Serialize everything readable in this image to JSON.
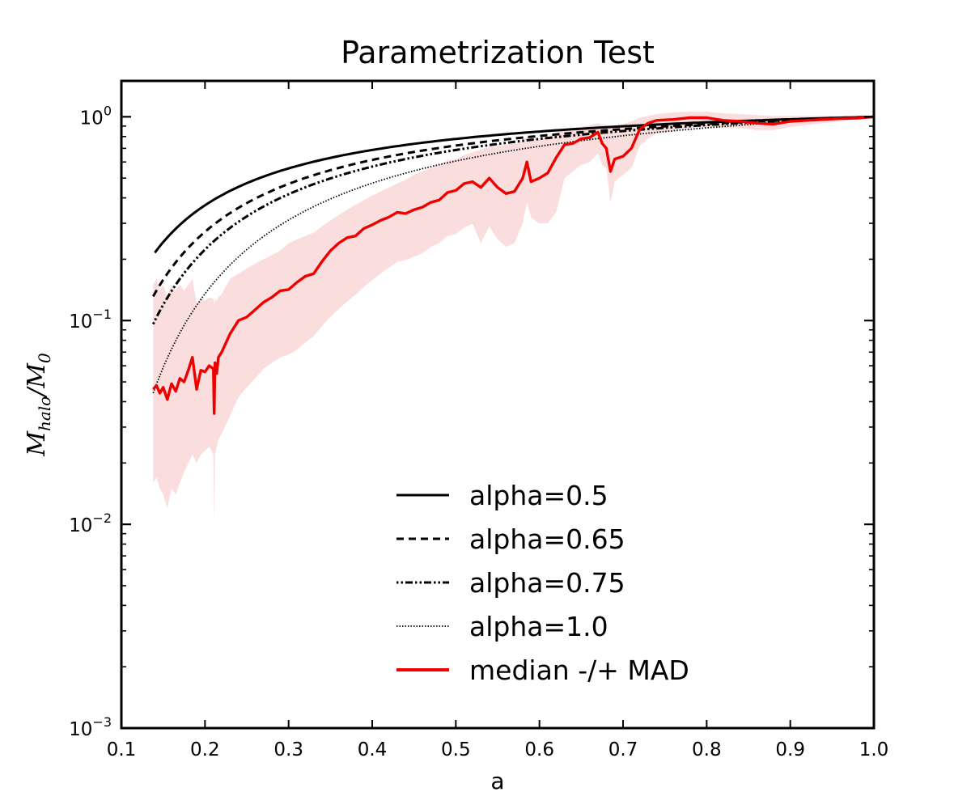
{
  "chart_data": {
    "type": "line",
    "title": "Parametrization Test",
    "xlabel": "a",
    "ylabel_base": "M",
    "ylabel_sub1": "halo",
    "ylabel_mid": "/M",
    "ylabel_sub2": "0",
    "xlim": [
      0.1,
      1.0
    ],
    "ylim": [
      0.001,
      1.5
    ],
    "yscale": "log",
    "grid": false,
    "legend_position": "lower-right",
    "x_ticks": [
      {
        "value": 0.1,
        "label": "0.1"
      },
      {
        "value": 0.2,
        "label": "0.2"
      },
      {
        "value": 0.3,
        "label": "0.3"
      },
      {
        "value": 0.4,
        "label": "0.4"
      },
      {
        "value": 0.5,
        "label": "0.5"
      },
      {
        "value": 0.6,
        "label": "0.6"
      },
      {
        "value": 0.7,
        "label": "0.7"
      },
      {
        "value": 0.8,
        "label": "0.8"
      },
      {
        "value": 0.9,
        "label": "0.9"
      },
      {
        "value": 1.0,
        "label": "1.0"
      }
    ],
    "y_ticks": [
      {
        "value": 0.001,
        "base": "10",
        "exp": "−3"
      },
      {
        "value": 0.01,
        "base": "10",
        "exp": "−2"
      },
      {
        "value": 0.1,
        "base": "10",
        "exp": "−1"
      },
      {
        "value": 1.0,
        "base": "10",
        "exp": "0"
      }
    ],
    "series": [
      {
        "name": "alpha=0.5",
        "color": "#000000",
        "style": "solid",
        "alpha_param": 0.5,
        "x_start": 0.14,
        "x_end": 1.0
      },
      {
        "name": "alpha=0.65",
        "color": "#000000",
        "style": "dashed",
        "alpha_param": 0.65,
        "x_start": 0.138,
        "x_end": 1.0
      },
      {
        "name": "alpha=0.75",
        "color": "#000000",
        "style": "dashdot",
        "alpha_param": 0.75,
        "x_start": 0.138,
        "x_end": 1.0
      },
      {
        "name": "alpha=1.0",
        "color": "#000000",
        "style": "dotted",
        "alpha_param": 1.0,
        "x_start": 0.138,
        "x_end": 1.0
      },
      {
        "name": "median -/+ MAD",
        "color": "#ee0000",
        "style": "solid",
        "band_color": "#f4b4b4",
        "x": [
          0.138,
          0.142,
          0.146,
          0.15,
          0.155,
          0.16,
          0.165,
          0.17,
          0.175,
          0.18,
          0.185,
          0.19,
          0.195,
          0.2,
          0.205,
          0.21,
          0.211,
          0.212,
          0.214,
          0.216,
          0.22,
          0.23,
          0.24,
          0.25,
          0.26,
          0.27,
          0.28,
          0.29,
          0.3,
          0.31,
          0.32,
          0.33,
          0.34,
          0.35,
          0.36,
          0.37,
          0.38,
          0.39,
          0.4,
          0.41,
          0.42,
          0.43,
          0.44,
          0.45,
          0.46,
          0.47,
          0.48,
          0.49,
          0.5,
          0.51,
          0.52,
          0.53,
          0.54,
          0.55,
          0.56,
          0.57,
          0.58,
          0.585,
          0.59,
          0.6,
          0.61,
          0.62,
          0.63,
          0.64,
          0.65,
          0.66,
          0.67,
          0.675,
          0.68,
          0.685,
          0.69,
          0.7,
          0.71,
          0.72,
          0.73,
          0.74,
          0.76,
          0.78,
          0.8,
          0.82,
          0.84,
          0.86,
          0.88,
          0.9,
          0.92,
          0.94,
          0.96,
          0.98,
          1.0
        ],
        "median": [
          0.046,
          0.048,
          0.044,
          0.047,
          0.041,
          0.049,
          0.045,
          0.052,
          0.05,
          0.057,
          0.066,
          0.046,
          0.057,
          0.056,
          0.06,
          0.058,
          0.035,
          0.062,
          0.055,
          0.066,
          0.07,
          0.086,
          0.1,
          0.104,
          0.113,
          0.123,
          0.13,
          0.14,
          0.142,
          0.154,
          0.165,
          0.17,
          0.195,
          0.22,
          0.24,
          0.255,
          0.26,
          0.283,
          0.295,
          0.31,
          0.322,
          0.34,
          0.335,
          0.35,
          0.36,
          0.38,
          0.39,
          0.425,
          0.435,
          0.47,
          0.48,
          0.45,
          0.5,
          0.45,
          0.42,
          0.43,
          0.5,
          0.6,
          0.48,
          0.5,
          0.53,
          0.63,
          0.73,
          0.74,
          0.78,
          0.79,
          0.84,
          0.74,
          0.7,
          0.54,
          0.62,
          0.64,
          0.7,
          0.87,
          0.93,
          0.96,
          0.97,
          0.99,
          0.99,
          0.96,
          0.95,
          0.93,
          0.92,
          0.95,
          0.96,
          0.97,
          0.98,
          0.985,
          1.0
        ],
        "upper": [
          0.15,
          0.16,
          0.14,
          0.15,
          0.13,
          0.15,
          0.14,
          0.15,
          0.14,
          0.15,
          0.16,
          0.12,
          0.13,
          0.125,
          0.13,
          0.128,
          0.12,
          0.128,
          0.125,
          0.13,
          0.135,
          0.16,
          0.17,
          0.18,
          0.19,
          0.2,
          0.21,
          0.22,
          0.24,
          0.25,
          0.26,
          0.27,
          0.29,
          0.31,
          0.33,
          0.35,
          0.37,
          0.39,
          0.41,
          0.43,
          0.45,
          0.47,
          0.49,
          0.52,
          0.54,
          0.56,
          0.58,
          0.61,
          0.62,
          0.65,
          0.67,
          0.69,
          0.71,
          0.72,
          0.73,
          0.74,
          0.76,
          0.8,
          0.77,
          0.78,
          0.8,
          0.83,
          0.86,
          0.88,
          0.89,
          0.91,
          0.93,
          0.92,
          0.91,
          0.88,
          0.9,
          0.92,
          0.95,
          0.99,
          1.01,
          1.03,
          1.05,
          1.06,
          1.06,
          1.04,
          1.03,
          1.02,
          1.01,
          1.01,
          1.01,
          1.01,
          1.01,
          1.0,
          1.0
        ],
        "lower": [
          0.016,
          0.017,
          0.015,
          0.014,
          0.012,
          0.015,
          0.014,
          0.016,
          0.018,
          0.02,
          0.022,
          0.02,
          0.022,
          0.023,
          0.024,
          0.022,
          0.01,
          0.022,
          0.024,
          0.026,
          0.028,
          0.034,
          0.042,
          0.047,
          0.052,
          0.058,
          0.062,
          0.066,
          0.068,
          0.072,
          0.078,
          0.084,
          0.094,
          0.104,
          0.114,
          0.124,
          0.134,
          0.146,
          0.158,
          0.17,
          0.182,
          0.194,
          0.198,
          0.206,
          0.214,
          0.23,
          0.24,
          0.26,
          0.266,
          0.286,
          0.298,
          0.24,
          0.29,
          0.25,
          0.23,
          0.24,
          0.3,
          0.38,
          0.32,
          0.3,
          0.3,
          0.34,
          0.5,
          0.54,
          0.58,
          0.6,
          0.66,
          0.58,
          0.56,
          0.38,
          0.48,
          0.52,
          0.56,
          0.72,
          0.78,
          0.83,
          0.86,
          0.88,
          0.89,
          0.88,
          0.88,
          0.86,
          0.86,
          0.89,
          0.91,
          0.93,
          0.95,
          0.97,
          1.0
        ]
      }
    ]
  }
}
